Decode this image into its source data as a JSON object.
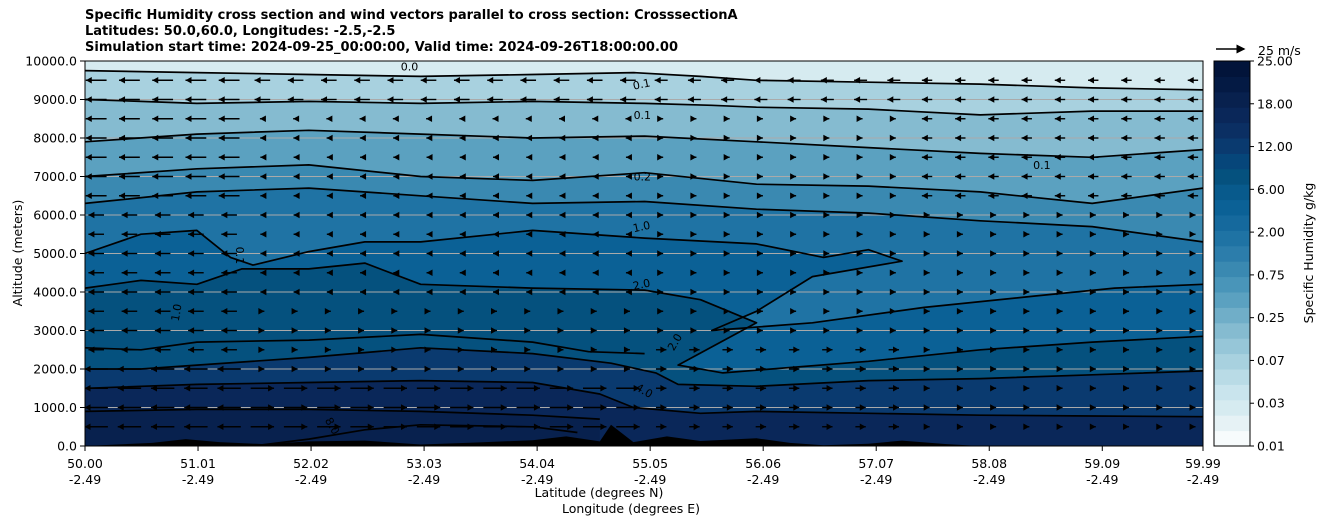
{
  "chart_data": {
    "type": "contour",
    "title_lines": [
      "Specific Humidity cross section and wind vectors parallel to cross section: CrosssectionA",
      "Latitudes: 50.0,60.0, Longitudes: -2.5,-2.5",
      "Simulation start time: 2024-09-25_00:00:00, Valid time: 2024-09-26T18:00:00.00"
    ],
    "ylabel": "Altitude (meters)",
    "xlabel_lat": "Latitude (degrees N)",
    "xlabel_lon": "Longitude (degrees E)",
    "ylim": [
      0,
      10000
    ],
    "yticks": [
      "0.0",
      "1000.0",
      "2000.0",
      "3000.0",
      "4000.0",
      "5000.0",
      "6000.0",
      "7000.0",
      "8000.0",
      "9000.0",
      "10000.0"
    ],
    "xlim": [
      50.0,
      59.99
    ],
    "xticks": [
      {
        "lat": "50.00",
        "lon": "-2.49",
        "value": 50.0
      },
      {
        "lat": "51.01",
        "lon": "-2.49",
        "value": 51.01
      },
      {
        "lat": "52.02",
        "lon": "-2.49",
        "value": 52.02
      },
      {
        "lat": "53.03",
        "lon": "-2.49",
        "value": 53.03
      },
      {
        "lat": "54.04",
        "lon": "-2.49",
        "value": 54.04
      },
      {
        "lat": "55.05",
        "lon": "-2.49",
        "value": 55.05
      },
      {
        "lat": "56.06",
        "lon": "-2.49",
        "value": 56.06
      },
      {
        "lat": "57.07",
        "lon": "-2.49",
        "value": 57.07
      },
      {
        "lat": "58.08",
        "lon": "-2.49",
        "value": 58.08
      },
      {
        "lat": "59.09",
        "lon": "-2.49",
        "value": 59.09
      },
      {
        "lat": "59.99",
        "lon": "-2.49",
        "value": 59.99
      }
    ],
    "colorbar_label": "Specific Humidity g/kg",
    "colorbar_ticks": [
      "0.01",
      "0.03",
      "0.07",
      "0.25",
      "0.75",
      "2.00",
      "6.00",
      "12.00",
      "18.00",
      "25.00"
    ],
    "quiver_key": "25 m/s",
    "contours": [
      {
        "level": "0.0",
        "label": "0.0",
        "label_lat": 52.9,
        "label_alt": 9750,
        "rot": 0
      },
      {
        "level": "0.1",
        "label": "0.1",
        "label_lat": 54.98,
        "label_alt": 9300,
        "rot": -12
      },
      {
        "level": "0.1",
        "label": "0.1",
        "label_lat": 54.98,
        "label_alt": 8500,
        "rot": 0
      },
      {
        "level": "0.1",
        "label": "0.1",
        "label_lat": 58.55,
        "label_alt": 7200,
        "rot": 0
      },
      {
        "level": "0.1",
        "label": "0.1",
        "label_lat": 51.35,
        "label_alt": 4950,
        "rot": 90
      },
      {
        "level": "0.2",
        "label": "0.2",
        "label_lat": 54.98,
        "label_alt": 6900,
        "rot": 0
      },
      {
        "level": "1.0",
        "label": "1.0",
        "label_lat": 54.98,
        "label_alt": 5600,
        "rot": -12
      },
      {
        "level": "1.0",
        "label": "1.0",
        "label_lat": 50.85,
        "label_alt": 3450,
        "rot": -80
      },
      {
        "level": "2.0",
        "label": "2.0",
        "label_lat": 54.98,
        "label_alt": 4100,
        "rot": -12
      },
      {
        "level": "2.0",
        "label": "2.0",
        "label_lat": 55.3,
        "label_alt": 2650,
        "rot": -60
      },
      {
        "level": "4.0",
        "label": "4.0",
        "label_lat": 54.98,
        "label_alt": 1350,
        "rot": 30
      },
      {
        "level": "8.0",
        "label": "8.0",
        "label_lat": 52.18,
        "label_alt": 470,
        "rot": 60
      }
    ],
    "contour_lines": [
      [
        [
          50,
          9750
        ],
        [
          51,
          9700
        ],
        [
          52,
          9650
        ],
        [
          53,
          9600
        ],
        [
          54,
          9650
        ],
        [
          54.9,
          9700
        ],
        [
          55.5,
          9600
        ],
        [
          56,
          9500
        ],
        [
          57,
          9450
        ],
        [
          58,
          9400
        ],
        [
          59,
          9300
        ],
        [
          59.99,
          9250
        ]
      ],
      [
        [
          50,
          9000
        ],
        [
          50.5,
          8950
        ],
        [
          51,
          8900
        ],
        [
          52,
          8950
        ],
        [
          53,
          8900
        ],
        [
          54,
          8950
        ],
        [
          55,
          8900
        ],
        [
          55.6,
          8850
        ],
        [
          56,
          8800
        ],
        [
          57,
          8750
        ],
        [
          58,
          8600
        ],
        [
          59,
          8700
        ],
        [
          59.99,
          8700
        ]
      ],
      [
        [
          50,
          7900
        ],
        [
          51,
          8100
        ],
        [
          52,
          8200
        ],
        [
          53,
          8100
        ],
        [
          54,
          8000
        ],
        [
          55,
          8050
        ],
        [
          56,
          7900
        ],
        [
          57,
          7750
        ],
        [
          58,
          7600
        ],
        [
          59,
          7500
        ],
        [
          59.99,
          7700
        ]
      ],
      [
        [
          50,
          7000
        ],
        [
          51,
          7200
        ],
        [
          52,
          7300
        ],
        [
          53,
          7000
        ],
        [
          54,
          6900
        ],
        [
          55,
          7100
        ],
        [
          56,
          6800
        ],
        [
          57,
          6750
        ],
        [
          58,
          6600
        ],
        [
          59,
          6300
        ],
        [
          59.99,
          6700
        ]
      ],
      [
        [
          50,
          6300
        ],
        [
          51,
          6600
        ],
        [
          52,
          6700
        ],
        [
          53,
          6500
        ],
        [
          54,
          6300
        ],
        [
          55,
          6350
        ],
        [
          56,
          6150
        ],
        [
          57,
          6050
        ],
        [
          58,
          5850
        ],
        [
          59,
          5700
        ],
        [
          59.99,
          5300
        ]
      ],
      [
        [
          50,
          5000
        ],
        [
          50.5,
          5500
        ],
        [
          51,
          5600
        ],
        [
          51.3,
          4900
        ],
        [
          51.5,
          4700
        ],
        [
          52,
          5050
        ],
        [
          52.5,
          5300
        ],
        [
          53,
          5300
        ],
        [
          54,
          5600
        ],
        [
          55,
          5400
        ],
        [
          56,
          5250
        ],
        [
          56.6,
          4900
        ],
        [
          57,
          5100
        ],
        [
          57.3,
          4800
        ],
        [
          56.5,
          4400
        ],
        [
          56,
          3500
        ],
        [
          55.6,
          3000
        ],
        [
          56.5,
          3200
        ],
        [
          57.5,
          3600
        ],
        [
          58.5,
          3900
        ],
        [
          59.2,
          4100
        ],
        [
          59.99,
          4200
        ]
      ],
      [
        [
          50,
          4100
        ],
        [
          50.5,
          4300
        ],
        [
          51,
          4200
        ],
        [
          51.4,
          4600
        ],
        [
          52,
          4600
        ],
        [
          52.5,
          4750
        ],
        [
          53,
          4200
        ],
        [
          54,
          4100
        ],
        [
          55,
          4050
        ],
        [
          55.5,
          3800
        ],
        [
          56,
          3200
        ],
        [
          55.3,
          2100
        ],
        [
          55.7,
          1900
        ],
        [
          57,
          2200
        ],
        [
          58,
          2500
        ],
        [
          59,
          2700
        ],
        [
          59.99,
          2850
        ]
      ],
      [
        [
          50,
          2000
        ],
        [
          50.5,
          2000
        ],
        [
          51,
          2100
        ],
        [
          52,
          2300
        ],
        [
          53,
          2550
        ],
        [
          54,
          2400
        ],
        [
          54.7,
          2150
        ],
        [
          55.1,
          1900
        ],
        [
          55.3,
          1600
        ],
        [
          56,
          1550
        ],
        [
          57,
          1700
        ],
        [
          58,
          1750
        ],
        [
          59,
          1850
        ],
        [
          59.99,
          1950
        ]
      ],
      [
        [
          50,
          2550
        ],
        [
          50.5,
          2500
        ],
        [
          51,
          2700
        ],
        [
          52,
          2750
        ],
        [
          53,
          2900
        ],
        [
          54,
          2700
        ],
        [
          54.5,
          2450
        ],
        [
          55,
          2400
        ]
      ],
      [
        [
          50,
          1500
        ],
        [
          51,
          1600
        ],
        [
          52,
          1650
        ],
        [
          53,
          1700
        ],
        [
          54,
          1650
        ],
        [
          54.6,
          1350
        ],
        [
          54.9,
          1000
        ],
        [
          55.5,
          850
        ],
        [
          56,
          900
        ],
        [
          57,
          850
        ],
        [
          58,
          800
        ],
        [
          59,
          780
        ],
        [
          59.99,
          760
        ]
      ],
      [
        [
          50,
          900
        ],
        [
          51,
          950
        ],
        [
          52,
          950
        ],
        [
          53,
          900
        ],
        [
          54,
          800
        ],
        [
          54.6,
          700
        ]
      ],
      [
        [
          51.5,
          0
        ],
        [
          52,
          180
        ],
        [
          52.5,
          420
        ],
        [
          53,
          550
        ],
        [
          54,
          500
        ],
        [
          54.4,
          350
        ]
      ]
    ],
    "terrain": [
      [
        50,
        0
      ],
      [
        50.6,
        80
      ],
      [
        50.9,
        180
      ],
      [
        51.2,
        100
      ],
      [
        51.6,
        50
      ],
      [
        52,
        120
      ],
      [
        52.5,
        140
      ],
      [
        53,
        40
      ],
      [
        53.5,
        90
      ],
      [
        54,
        150
      ],
      [
        54.3,
        250
      ],
      [
        54.6,
        120
      ],
      [
        54.7,
        550
      ],
      [
        54.9,
        100
      ],
      [
        55.2,
        250
      ],
      [
        55.5,
        130
      ],
      [
        56,
        200
      ],
      [
        56.3,
        80
      ],
      [
        56.6,
        20
      ],
      [
        57.0,
        60
      ],
      [
        57.3,
        140
      ],
      [
        57.7,
        50
      ],
      [
        58.0,
        0
      ]
    ],
    "colors": {
      "humidity_scale": [
        "#f7fbfc",
        "#e6f2f5",
        "#d6ebf0",
        "#c9e4ed",
        "#b9dbe6",
        "#a8d1df",
        "#96c6d8",
        "#85bbd0",
        "#70aec8",
        "#5ba1c0",
        "#4995b9",
        "#3a89b1",
        "#2c7dab",
        "#1f73a4",
        "#15699d",
        "#0b6196",
        "#085a8c",
        "#05517e",
        "#06467a",
        "#0a3a6f",
        "#0b2f63",
        "#0a2759",
        "#08214e",
        "#041a44",
        "#02143a"
      ],
      "background_top": "#d6ebf0",
      "terrain": "#000000"
    }
  }
}
